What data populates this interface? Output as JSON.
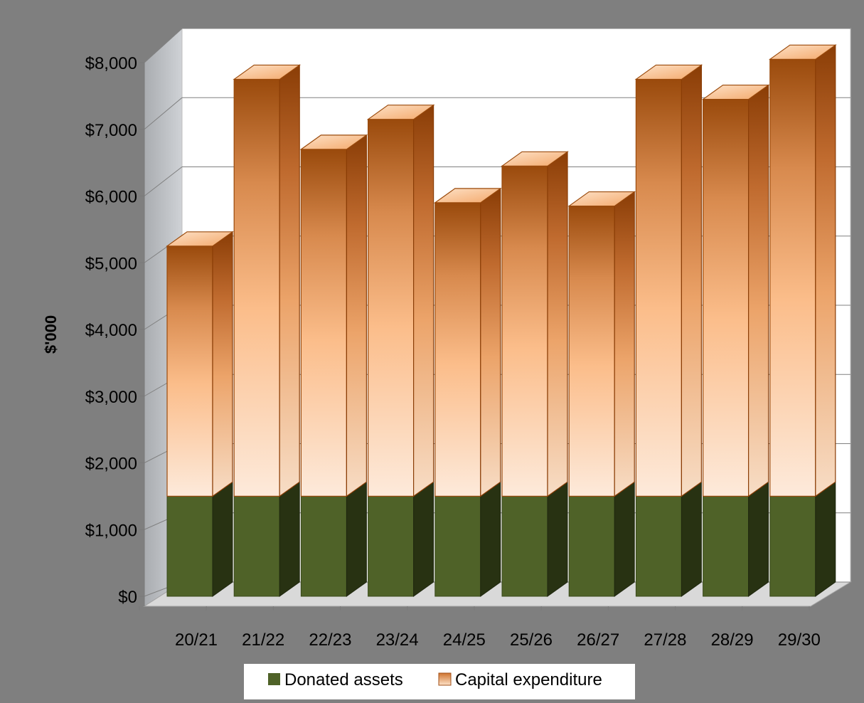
{
  "chart_data": {
    "type": "bar",
    "stacked": true,
    "three_d": true,
    "title": "",
    "xlabel": "",
    "ylabel": "$'000",
    "ylim": [
      0,
      8000
    ],
    "yticks": [
      0,
      1000,
      2000,
      3000,
      4000,
      5000,
      6000,
      7000,
      8000
    ],
    "ytick_labels": [
      "$0",
      "$1,000",
      "$2,000",
      "$3,000",
      "$4,000",
      "$5,000",
      "$6,000",
      "$7,000",
      "$8,000"
    ],
    "categories": [
      "20/21",
      "21/22",
      "22/23",
      "23/24",
      "24/25",
      "25/26",
      "26/27",
      "27/28",
      "28/29",
      "29/30"
    ],
    "series": [
      {
        "name": "Donated assets",
        "values": [
          1500,
          1500,
          1500,
          1500,
          1500,
          1500,
          1500,
          1500,
          1500,
          1500
        ],
        "color": "#4f6228"
      },
      {
        "name": "Capital expenditure",
        "values": [
          3750,
          6250,
          5200,
          5650,
          4400,
          4950,
          4350,
          6250,
          5950,
          6550
        ],
        "color": "#c0622a"
      }
    ],
    "grid": true,
    "legend_position": "bottom",
    "background_color": "#7f7f7f",
    "plot_background_color": "#ffffff"
  }
}
